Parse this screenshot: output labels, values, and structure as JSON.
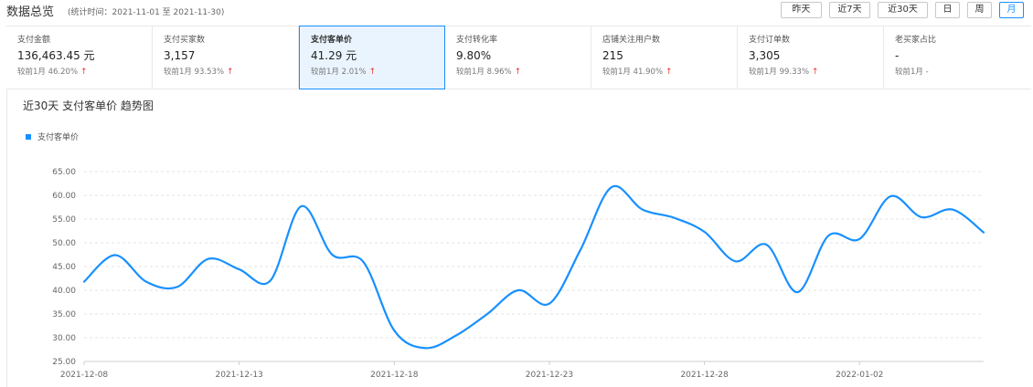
{
  "header": {
    "title": "数据总览",
    "period": "(统计时间：2021-11-01 至 2021-11-30)",
    "range_buttons": [
      "昨天",
      "近7天",
      "近30天",
      "日",
      "周",
      "月"
    ],
    "active_range": "月"
  },
  "metrics": [
    {
      "label": "支付金额",
      "value": "136,463.45 元",
      "compare": "较前1月 46.20%",
      "trend": "up"
    },
    {
      "label": "支付买家数",
      "value": "3,157",
      "compare": "较前1月 93.53%",
      "trend": "up"
    },
    {
      "label": "支付客单价",
      "value": "41.29 元",
      "compare": "较前1月 2.01%",
      "trend": "up"
    },
    {
      "label": "支付转化率",
      "value": "9.80%",
      "compare": "较前1月 8.96%",
      "trend": "up"
    },
    {
      "label": "店铺关注用户数",
      "value": "215",
      "compare": "较前1月 41.90%",
      "trend": "up"
    },
    {
      "label": "支付订单数",
      "value": "3,305",
      "compare": "较前1月 99.33%",
      "trend": "up"
    },
    {
      "label": "老买家占比",
      "value": "-",
      "compare": "较前1月 -",
      "trend": "none"
    }
  ],
  "selected_metric": "支付客单价",
  "colors": {
    "accent": "#1890ff",
    "up": "#e8362a"
  },
  "chart_data": {
    "type": "line",
    "title": "近30天 支付客单价 趋势图",
    "ylim": [
      25,
      65
    ],
    "yticks": [
      "25.00",
      "30.00",
      "35.00",
      "40.00",
      "45.00",
      "50.00",
      "55.00",
      "60.00",
      "65.00"
    ],
    "xtick_labels": [
      "2021-12-08",
      "2021-12-13",
      "2021-12-18",
      "2021-12-23",
      "2021-12-28",
      "2022-01-02"
    ],
    "x": [
      "2021-12-08",
      "2021-12-09",
      "2021-12-10",
      "2021-12-11",
      "2021-12-12",
      "2021-12-13",
      "2021-12-14",
      "2021-12-15",
      "2021-12-16",
      "2021-12-17",
      "2021-12-18",
      "2021-12-19",
      "2021-12-20",
      "2021-12-21",
      "2021-12-22",
      "2021-12-23",
      "2021-12-24",
      "2021-12-25",
      "2021-12-26",
      "2021-12-27",
      "2021-12-28",
      "2021-12-29",
      "2021-12-30",
      "2021-12-31",
      "2022-01-01",
      "2022-01-02",
      "2022-01-03",
      "2022-01-04",
      "2022-01-05",
      "2022-01-06"
    ],
    "series": [
      {
        "name": "支付客单价",
        "color": "#1890ff",
        "values": [
          41.8,
          47.4,
          41.8,
          40.7,
          46.6,
          44.4,
          42.0,
          57.7,
          47.5,
          46.0,
          31.5,
          27.8,
          30.5,
          35.0,
          40.0,
          37.2,
          48.5,
          61.7,
          57.0,
          55.3,
          52.3,
          46.1,
          49.6,
          39.6,
          51.5,
          50.8,
          59.8,
          55.4,
          57.0,
          52.2
        ]
      }
    ],
    "legend": "top-left",
    "grid": true
  }
}
